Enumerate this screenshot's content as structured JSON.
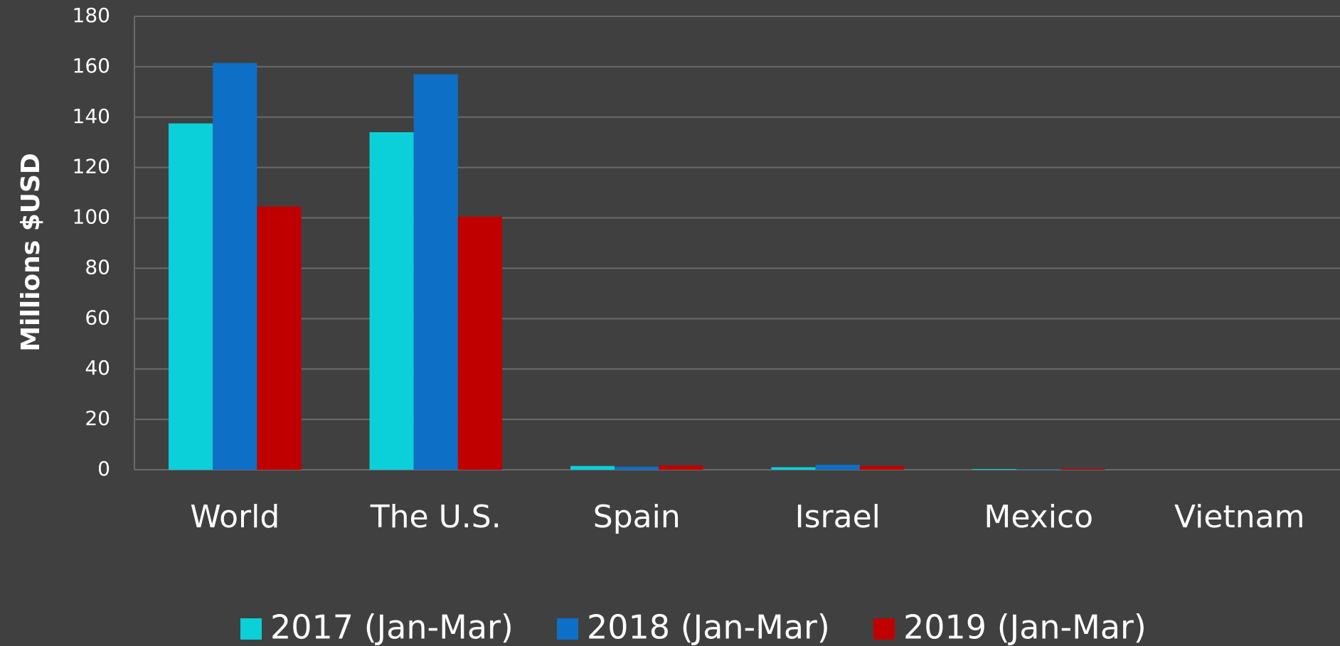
{
  "chart_data": {
    "type": "bar",
    "y_label": "Millions $USD",
    "categories": [
      "World",
      "The U.S.",
      "Spain",
      "Israel",
      "Mexico",
      "Vietnam"
    ],
    "series": [
      {
        "name": "2017 (Jan-Mar)",
        "color": "#0bd0d9",
        "values": [
          137.5,
          134,
          1.5,
          1.0,
          0.3,
          0
        ]
      },
      {
        "name": "2018 (Jan-Mar)",
        "color": "#0e6fc7",
        "values": [
          161.5,
          157,
          1.2,
          2.0,
          0.2,
          0
        ]
      },
      {
        "name": "2019 (Jan-Mar)",
        "color": "#c00000",
        "values": [
          104.5,
          100.5,
          1.7,
          1.5,
          0.4,
          0
        ]
      }
    ],
    "ylim": [
      0,
      180
    ],
    "yticks": [
      0,
      20,
      40,
      60,
      80,
      100,
      120,
      140,
      160,
      180
    ],
    "grid": true,
    "legend": "bottom"
  }
}
